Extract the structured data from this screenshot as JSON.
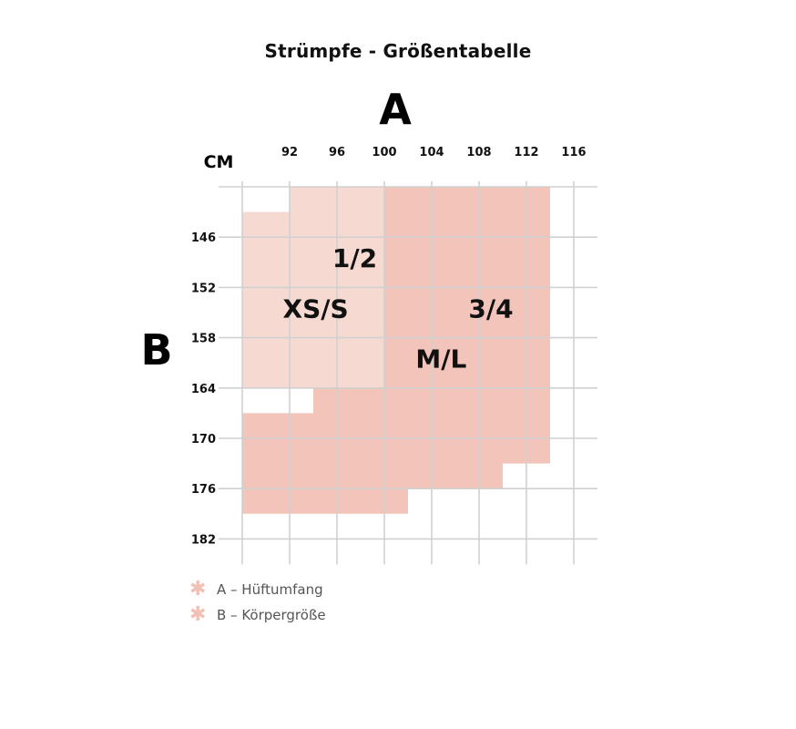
{
  "title": "Strümpfe - Größentabelle",
  "chart_data": {
    "type": "size-chart",
    "x_axis_letter": "A",
    "y_axis_letter": "B",
    "unit": "CM",
    "x_ticks": [
      92,
      96,
      100,
      104,
      108,
      112,
      116
    ],
    "y_ticks": [
      146,
      152,
      158,
      164,
      170,
      176,
      182
    ],
    "grid": true,
    "regions": [
      {
        "label": "1/2",
        "sub_label": "XS/S",
        "color": "#f6dad2",
        "vertices": [
          [
            88,
            143
          ],
          [
            88,
            164
          ],
          [
            94,
            164
          ],
          [
            94,
            167
          ],
          [
            88,
            167
          ],
          [
            88,
            167
          ],
          [
            94,
            167
          ],
          [
            94,
            164
          ],
          [
            100,
            164
          ],
          [
            100,
            140
          ],
          [
            92,
            140
          ],
          [
            92,
            143
          ]
        ]
      },
      {
        "label": "3/4",
        "sub_label": "M/L",
        "color": "#f3c4ba",
        "vertices": [
          [
            100,
            140
          ],
          [
            114,
            140
          ],
          [
            114,
            173
          ],
          [
            110,
            173
          ],
          [
            110,
            176
          ],
          [
            102,
            176
          ],
          [
            102,
            179
          ],
          [
            88,
            179
          ],
          [
            88,
            167
          ],
          [
            94,
            167
          ],
          [
            94,
            164
          ],
          [
            100,
            164
          ]
        ]
      }
    ],
    "legend": [
      {
        "key": "A",
        "text": "A – Hüftumfang"
      },
      {
        "key": "B",
        "text": "B – Körpergröße"
      }
    ],
    "colors": {
      "light": "#f6dad2",
      "dark": "#f3c4ba",
      "grid": "#d0d0d0",
      "legend_mark": "#f1c1b5"
    }
  }
}
